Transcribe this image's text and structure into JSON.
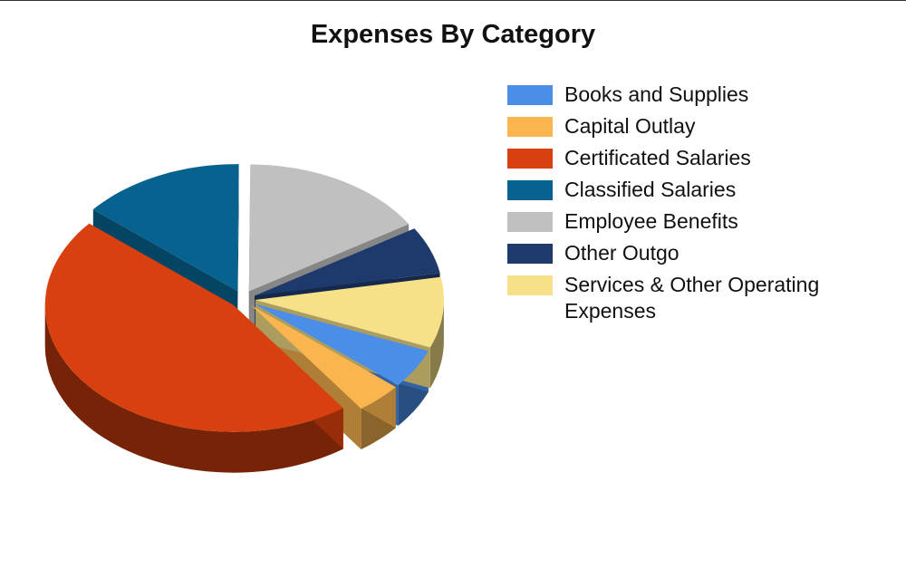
{
  "chart_data": {
    "type": "pie3d",
    "title": "Expenses By Category",
    "categories": [
      "Books and Supplies",
      "Capital Outlay",
      "Certificated Salaries",
      "Classified Salaries",
      "Employee Benefits",
      "Other Outgo",
      "Services & Other Operating Expenses"
    ],
    "values": [
      5,
      4,
      46,
      14,
      16,
      6,
      9
    ],
    "colors": [
      "#4a8ee8",
      "#fbb54f",
      "#d9400f",
      "#07628f",
      "#c0c0c0",
      "#1e3a6c",
      "#f6e088"
    ],
    "legend": "right"
  }
}
